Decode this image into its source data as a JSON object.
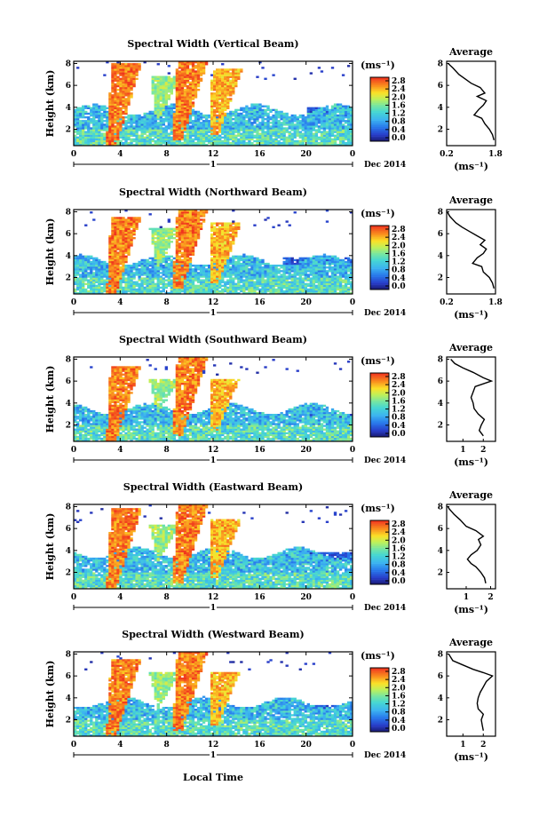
{
  "figure": {
    "xlabel": "Local Time",
    "ylabel": "Height (km)",
    "date_label": "Dec 2014",
    "day_label": "1",
    "unit_label": "(ms⁻¹)",
    "average_title": "Average"
  },
  "chart_data": [
    {
      "type": "heatmap",
      "title": "Spectral Width (Vertical Beam)",
      "xlabel": "",
      "ylabel": "Height (km)",
      "x_ticks": [
        "0",
        "4",
        "8",
        "12",
        "16",
        "20",
        "0"
      ],
      "y_ticks": [
        "2",
        "4",
        "6",
        "8"
      ],
      "xlim": [
        0,
        24
      ],
      "ylim": [
        0.5,
        8.2
      ],
      "colorbar": {
        "ticks": [
          "0.0",
          "0.4",
          "0.8",
          "1.2",
          "1.6",
          "2.0",
          "2.4",
          "2.8"
        ],
        "range": [
          0,
          2.8
        ]
      },
      "average": {
        "title": "Average",
        "xlabel": "(ms⁻¹)",
        "x_ticks": [
          "0.2",
          "1.8"
        ],
        "xlim": [
          0.2,
          1.8
        ],
        "y_ticks": [
          "2",
          "4",
          "6",
          "8"
        ],
        "profile": [
          [
            1.75,
            1.0
          ],
          [
            1.7,
            1.5
          ],
          [
            1.6,
            2.0
          ],
          [
            1.45,
            2.5
          ],
          [
            1.35,
            3.0
          ],
          [
            1.1,
            3.3
          ],
          [
            1.25,
            3.8
          ],
          [
            1.4,
            4.2
          ],
          [
            1.5,
            4.6
          ],
          [
            1.2,
            5.0
          ],
          [
            1.45,
            5.3
          ],
          [
            1.3,
            5.8
          ],
          [
            1.0,
            6.2
          ],
          [
            0.8,
            6.6
          ],
          [
            0.6,
            7.0
          ],
          [
            0.4,
            7.6
          ],
          [
            0.25,
            8.0
          ]
        ]
      },
      "features": {
        "cells": [
          [
            3.5,
            2.0,
            8.0,
            2.8
          ],
          [
            9.2,
            2.5,
            8.2,
            2.8
          ],
          [
            12.4,
            3.0,
            7.5,
            2.6
          ],
          [
            7.5,
            4.5,
            6.8,
            2.0
          ]
        ],
        "low_layer_top": 3.8,
        "upper_layer": [
          20,
          24,
          3.2,
          4.0
        ]
      }
    },
    {
      "type": "heatmap",
      "title": "Spectral Width (Northward Beam)",
      "xlabel": "",
      "ylabel": "Height (km)",
      "x_ticks": [
        "0",
        "4",
        "8",
        "12",
        "16",
        "20",
        "0"
      ],
      "y_ticks": [
        "2",
        "4",
        "6",
        "8"
      ],
      "xlim": [
        0,
        24
      ],
      "ylim": [
        0.5,
        8.2
      ],
      "colorbar": {
        "ticks": [
          "0.0",
          "0.4",
          "0.8",
          "1.2",
          "1.6",
          "2.0",
          "2.4",
          "2.8"
        ],
        "range": [
          0,
          2.8
        ]
      },
      "average": {
        "title": "Average",
        "xlabel": "(ms⁻¹)",
        "x_ticks": [
          "0.2",
          "1.8"
        ],
        "xlim": [
          0.2,
          1.8
        ],
        "y_ticks": [
          "2",
          "4",
          "6",
          "8"
        ],
        "profile": [
          [
            1.75,
            1.0
          ],
          [
            1.7,
            1.5
          ],
          [
            1.6,
            2.0
          ],
          [
            1.4,
            2.5
          ],
          [
            1.35,
            3.0
          ],
          [
            1.05,
            3.3
          ],
          [
            1.2,
            3.8
          ],
          [
            1.4,
            4.2
          ],
          [
            1.5,
            4.6
          ],
          [
            1.3,
            5.0
          ],
          [
            1.45,
            5.4
          ],
          [
            1.2,
            5.8
          ],
          [
            0.95,
            6.2
          ],
          [
            0.7,
            6.6
          ],
          [
            0.5,
            7.0
          ],
          [
            0.3,
            7.6
          ],
          [
            0.22,
            8.0
          ]
        ]
      },
      "features": {
        "cells": [
          [
            3.5,
            2.0,
            7.6,
            2.8
          ],
          [
            9.2,
            2.5,
            8.2,
            2.8
          ],
          [
            12.4,
            3.0,
            7.0,
            2.6
          ],
          [
            7.5,
            4.5,
            6.5,
            2.0
          ]
        ],
        "low_layer_top": 3.6,
        "upper_layer": [
          18,
          24,
          3.2,
          3.8
        ]
      }
    },
    {
      "type": "heatmap",
      "title": "Spectral Width (Southward Beam)",
      "xlabel": "",
      "ylabel": "Height (km)",
      "x_ticks": [
        "0",
        "4",
        "8",
        "12",
        "16",
        "20",
        "0"
      ],
      "y_ticks": [
        "2",
        "4",
        "6",
        "8"
      ],
      "xlim": [
        0,
        24
      ],
      "ylim": [
        0.5,
        8.2
      ],
      "colorbar": {
        "ticks": [
          "0.0",
          "0.4",
          "0.8",
          "1.2",
          "1.6",
          "2.0",
          "2.4",
          "2.8"
        ],
        "range": [
          0,
          2.8
        ]
      },
      "average": {
        "title": "Average",
        "xlabel": "(ms⁻¹)",
        "x_ticks": [
          "1",
          "2"
        ],
        "xlim": [
          0.2,
          2.6
        ],
        "y_ticks": [
          "2",
          "4",
          "6",
          "8"
        ],
        "profile": [
          [
            2.0,
            1.0
          ],
          [
            1.8,
            1.5
          ],
          [
            1.9,
            2.0
          ],
          [
            2.05,
            2.5
          ],
          [
            1.75,
            3.0
          ],
          [
            1.55,
            3.5
          ],
          [
            1.5,
            4.0
          ],
          [
            1.4,
            4.5
          ],
          [
            1.5,
            5.0
          ],
          [
            1.6,
            5.5
          ],
          [
            2.4,
            6.0
          ],
          [
            2.0,
            6.3
          ],
          [
            1.5,
            6.8
          ],
          [
            1.0,
            7.2
          ],
          [
            0.6,
            7.6
          ],
          [
            0.4,
            8.0
          ]
        ]
      },
      "features": {
        "cells": [
          [
            3.5,
            2.0,
            7.4,
            2.8
          ],
          [
            9.2,
            2.5,
            8.2,
            2.8
          ],
          [
            12.4,
            3.0,
            6.2,
            2.6
          ],
          [
            7.5,
            4.5,
            6.2,
            2.0
          ]
        ],
        "low_layer_top": 3.5,
        "upper_layer": [
          20,
          24,
          2.5,
          3.0
        ]
      }
    },
    {
      "type": "heatmap",
      "title": "Spectral Width (Eastward Beam)",
      "xlabel": "",
      "ylabel": "Height (km)",
      "x_ticks": [
        "0",
        "4",
        "8",
        "12",
        "16",
        "20",
        "0"
      ],
      "y_ticks": [
        "2",
        "4",
        "6",
        "8"
      ],
      "xlim": [
        0,
        24
      ],
      "ylim": [
        0.5,
        8.2
      ],
      "colorbar": {
        "ticks": [
          "0.0",
          "0.4",
          "0.8",
          "1.2",
          "1.6",
          "2.0",
          "2.4",
          "2.8"
        ],
        "range": [
          0,
          2.8
        ]
      },
      "average": {
        "title": "Average",
        "xlabel": "(ms⁻¹)",
        "x_ticks": [
          "1",
          "2"
        ],
        "xlim": [
          0.2,
          2.2
        ],
        "y_ticks": [
          "2",
          "4",
          "6",
          "8"
        ],
        "profile": [
          [
            1.8,
            1.0
          ],
          [
            1.75,
            1.5
          ],
          [
            1.6,
            2.0
          ],
          [
            1.4,
            2.5
          ],
          [
            1.2,
            2.8
          ],
          [
            1.05,
            3.2
          ],
          [
            1.2,
            3.6
          ],
          [
            1.45,
            4.0
          ],
          [
            1.6,
            4.5
          ],
          [
            1.5,
            5.0
          ],
          [
            1.7,
            5.3
          ],
          [
            1.4,
            5.8
          ],
          [
            1.0,
            6.2
          ],
          [
            0.75,
            6.8
          ],
          [
            0.5,
            7.3
          ],
          [
            0.3,
            7.8
          ],
          [
            0.25,
            8.0
          ]
        ]
      },
      "features": {
        "cells": [
          [
            3.5,
            2.0,
            7.8,
            2.8
          ],
          [
            9.2,
            2.5,
            8.2,
            2.8
          ],
          [
            12.4,
            3.0,
            6.8,
            2.6
          ],
          [
            7.5,
            4.5,
            6.3,
            2.0
          ]
        ],
        "low_layer_top": 3.8,
        "upper_layer": [
          18,
          24,
          3.0,
          3.8
        ]
      }
    },
    {
      "type": "heatmap",
      "title": "Spectral Width (Westward Beam)",
      "xlabel": "Local Time",
      "ylabel": "Height (km)",
      "x_ticks": [
        "0",
        "4",
        "8",
        "12",
        "16",
        "20",
        "0"
      ],
      "y_ticks": [
        "2",
        "4",
        "6",
        "8"
      ],
      "xlim": [
        0,
        24
      ],
      "ylim": [
        0.5,
        8.2
      ],
      "colorbar": {
        "ticks": [
          "0.0",
          "0.4",
          "0.8",
          "1.2",
          "1.6",
          "2.0",
          "2.4",
          "2.8"
        ],
        "range": [
          0,
          2.8
        ]
      },
      "average": {
        "title": "Average",
        "xlabel": "(ms⁻¹)",
        "x_ticks": [
          "1",
          "2"
        ],
        "xlim": [
          0.2,
          2.6
        ],
        "y_ticks": [
          "2",
          "4",
          "6",
          "8"
        ],
        "profile": [
          [
            2.0,
            1.0
          ],
          [
            1.95,
            1.5
          ],
          [
            1.9,
            2.0
          ],
          [
            2.0,
            2.5
          ],
          [
            1.75,
            3.0
          ],
          [
            1.7,
            3.5
          ],
          [
            1.75,
            4.0
          ],
          [
            1.85,
            4.5
          ],
          [
            2.0,
            5.0
          ],
          [
            2.15,
            5.5
          ],
          [
            2.45,
            6.0
          ],
          [
            2.0,
            6.3
          ],
          [
            1.5,
            6.6
          ],
          [
            1.0,
            7.0
          ],
          [
            0.5,
            7.4
          ],
          [
            0.3,
            8.0
          ]
        ]
      },
      "features": {
        "cells": [
          [
            3.5,
            2.0,
            7.6,
            2.8
          ],
          [
            9.2,
            2.5,
            8.2,
            2.8
          ],
          [
            12.4,
            3.0,
            6.4,
            2.6
          ],
          [
            7.5,
            4.5,
            6.3,
            2.0
          ]
        ],
        "low_layer_top": 3.6,
        "upper_layer": [
          20,
          24,
          2.8,
          3.4
        ]
      }
    }
  ]
}
